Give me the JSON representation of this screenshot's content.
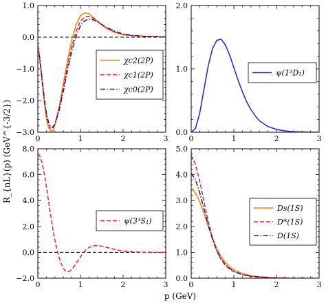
{
  "figure": {
    "ylabel": "R_{nL}(p) (GeV^{-3/2})",
    "xlabel": "p (GeV)"
  },
  "colors": {
    "orange": "#ff8000",
    "red": "#e8202a",
    "navy": "#1a1a8c",
    "blue": "#1f1fd6",
    "zero": "#000000"
  },
  "chart_data": [
    {
      "type": "line",
      "xlim": [
        0,
        3
      ],
      "ylim": [
        -3.0,
        1.0
      ],
      "xticks": [
        "0",
        "1",
        "2",
        "3"
      ],
      "yticks": [
        "−3.0",
        "−2.0",
        "−1.0",
        "0.0",
        "1.0"
      ],
      "ytick_values": [
        -3.0,
        -2.0,
        -1.0,
        0.0,
        1.0
      ],
      "zero_line": true,
      "legend": "center-right",
      "series": [
        {
          "name": "χc2(2P)",
          "color": "orange",
          "dash": "solid",
          "x": [
            0,
            0.05,
            0.1,
            0.15,
            0.2,
            0.25,
            0.3,
            0.35,
            0.4,
            0.5,
            0.6,
            0.7,
            0.8,
            0.9,
            1.0,
            1.1,
            1.2,
            1.3,
            1.4,
            1.6,
            1.8,
            2.0,
            2.2,
            2.5,
            2.8,
            3.0
          ],
          "y": [
            -0.25,
            -0.75,
            -1.4,
            -2.05,
            -2.55,
            -2.85,
            -2.97,
            -2.95,
            -2.78,
            -2.2,
            -1.45,
            -0.7,
            -0.05,
            0.4,
            0.68,
            0.77,
            0.74,
            0.63,
            0.5,
            0.28,
            0.15,
            0.08,
            0.05,
            0.03,
            0.02,
            0.01
          ]
        },
        {
          "name": "χc1(2P)",
          "color": "red",
          "dash": "dashed",
          "x": [
            0,
            0.05,
            0.1,
            0.15,
            0.2,
            0.25,
            0.3,
            0.35,
            0.4,
            0.5,
            0.6,
            0.7,
            0.8,
            0.9,
            1.0,
            1.1,
            1.2,
            1.3,
            1.4,
            1.6,
            1.8,
            2.0,
            2.2,
            2.5,
            2.8,
            3.0
          ],
          "y": [
            -0.25,
            -0.72,
            -1.35,
            -1.97,
            -2.45,
            -2.75,
            -2.88,
            -2.87,
            -2.74,
            -2.25,
            -1.58,
            -0.88,
            -0.27,
            0.2,
            0.5,
            0.64,
            0.66,
            0.6,
            0.5,
            0.3,
            0.17,
            0.09,
            0.05,
            0.03,
            0.02,
            0.01
          ]
        },
        {
          "name": "χc0(2P)",
          "color": "navy",
          "dash": "dashdot",
          "x": [
            0,
            0.05,
            0.1,
            0.15,
            0.2,
            0.25,
            0.3,
            0.35,
            0.4,
            0.5,
            0.6,
            0.7,
            0.8,
            0.9,
            1.0,
            1.1,
            1.2,
            1.3,
            1.4,
            1.6,
            1.8,
            2.0,
            2.2,
            2.5,
            2.8,
            3.0
          ],
          "y": [
            -0.25,
            -0.7,
            -1.3,
            -1.9,
            -2.38,
            -2.68,
            -2.82,
            -2.84,
            -2.75,
            -2.32,
            -1.7,
            -1.02,
            -0.42,
            0.05,
            0.36,
            0.52,
            0.57,
            0.55,
            0.48,
            0.32,
            0.19,
            0.1,
            0.06,
            0.03,
            0.02,
            0.01
          ]
        }
      ]
    },
    {
      "type": "line",
      "xlim": [
        0,
        3
      ],
      "ylim": [
        0,
        2.0
      ],
      "xticks": [
        "0",
        "1",
        "2",
        "3"
      ],
      "yticks": [
        "0.0",
        "1.0",
        "2.0"
      ],
      "ytick_values": [
        0,
        1.0,
        2.0
      ],
      "zero_line": false,
      "legend": "right",
      "series": [
        {
          "name": "ψ(1³D₁)",
          "color": "blue",
          "dash": "solid",
          "x": [
            0,
            0.1,
            0.2,
            0.3,
            0.4,
            0.5,
            0.6,
            0.7,
            0.8,
            0.9,
            1.0,
            1.1,
            1.2,
            1.3,
            1.4,
            1.5,
            1.6,
            1.8,
            2.0,
            2.2,
            2.4,
            2.6,
            2.8,
            3.0
          ],
          "y": [
            0,
            0.06,
            0.3,
            0.68,
            1.05,
            1.32,
            1.45,
            1.47,
            1.38,
            1.22,
            1.02,
            0.82,
            0.64,
            0.48,
            0.36,
            0.26,
            0.18,
            0.09,
            0.045,
            0.02,
            0.01,
            0.005,
            0.002,
            0.001
          ]
        }
      ]
    },
    {
      "type": "line",
      "xlim": [
        0,
        3
      ],
      "ylim": [
        -2.0,
        8.0
      ],
      "xticks": [
        "0",
        "1",
        "2",
        "3"
      ],
      "yticks": [
        "−2.0",
        "0.0",
        "2.0",
        "4.0",
        "6.0",
        "8.0"
      ],
      "ytick_values": [
        -2.0,
        0.0,
        2.0,
        4.0,
        6.0,
        8.0
      ],
      "zero_line": true,
      "legend": "right",
      "series": [
        {
          "name": "ψ(3³S₁)",
          "color": "red",
          "dash": "dashed",
          "x": [
            0,
            0.05,
            0.1,
            0.15,
            0.2,
            0.25,
            0.3,
            0.35,
            0.4,
            0.45,
            0.5,
            0.55,
            0.6,
            0.65,
            0.7,
            0.75,
            0.8,
            0.9,
            1.0,
            1.1,
            1.2,
            1.3,
            1.4,
            1.5,
            1.6,
            1.8,
            2.0,
            2.2,
            2.5,
            2.8,
            3.0
          ],
          "y": [
            7.6,
            7.4,
            6.9,
            6.1,
            5.1,
            4.0,
            2.9,
            1.85,
            0.95,
            0.2,
            -0.4,
            -0.9,
            -1.25,
            -1.45,
            -1.5,
            -1.45,
            -1.3,
            -0.85,
            -0.35,
            0.1,
            0.38,
            0.5,
            0.52,
            0.48,
            0.4,
            0.22,
            0.1,
            0.04,
            0.01,
            0.0,
            0.0
          ]
        }
      ]
    },
    {
      "type": "line",
      "xlim": [
        0,
        3
      ],
      "ylim": [
        0,
        5.0
      ],
      "xticks": [
        "0",
        "1",
        "2",
        "3"
      ],
      "yticks": [
        "0.0",
        "1.0",
        "2.0",
        "3.0",
        "4.0",
        "5.0"
      ],
      "ytick_values": [
        0,
        1.0,
        2.0,
        3.0,
        4.0,
        5.0
      ],
      "zero_line": false,
      "legend": "center-right",
      "series": [
        {
          "name": "Ds(1S)",
          "color": "orange",
          "dash": "solid",
          "x": [
            0,
            0.1,
            0.2,
            0.3,
            0.4,
            0.5,
            0.6,
            0.7,
            0.8,
            0.9,
            1.0,
            1.2,
            1.4,
            1.6,
            1.8,
            2.0,
            2.3,
            2.6,
            3.0
          ],
          "y": [
            3.5,
            3.3,
            2.95,
            2.5,
            2.0,
            1.55,
            1.15,
            0.85,
            0.62,
            0.45,
            0.33,
            0.18,
            0.1,
            0.06,
            0.035,
            0.02,
            0.01,
            0.005,
            0.002
          ]
        },
        {
          "name": "D*(1S)",
          "color": "red",
          "dash": "dashed",
          "x": [
            0,
            0.1,
            0.2,
            0.3,
            0.4,
            0.5,
            0.6,
            0.7,
            0.8,
            0.9,
            1.0,
            1.2,
            1.4,
            1.6,
            1.8,
            2.0,
            2.3,
            2.6,
            3.0
          ],
          "y": [
            4.75,
            4.4,
            3.75,
            2.95,
            2.2,
            1.55,
            1.05,
            0.72,
            0.5,
            0.35,
            0.25,
            0.13,
            0.07,
            0.04,
            0.02,
            0.012,
            0.006,
            0.003,
            0.001
          ]
        },
        {
          "name": "D(1S)",
          "color": "navy",
          "dash": "dashdot",
          "x": [
            0,
            0.1,
            0.2,
            0.3,
            0.4,
            0.5,
            0.6,
            0.7,
            0.8,
            0.9,
            1.0,
            1.2,
            1.4,
            1.6,
            1.8,
            2.0,
            2.3,
            2.6,
            3.0
          ],
          "y": [
            4.05,
            3.8,
            3.3,
            2.68,
            2.05,
            1.5,
            1.06,
            0.75,
            0.53,
            0.38,
            0.27,
            0.14,
            0.08,
            0.045,
            0.025,
            0.015,
            0.007,
            0.003,
            0.001
          ]
        }
      ]
    }
  ]
}
